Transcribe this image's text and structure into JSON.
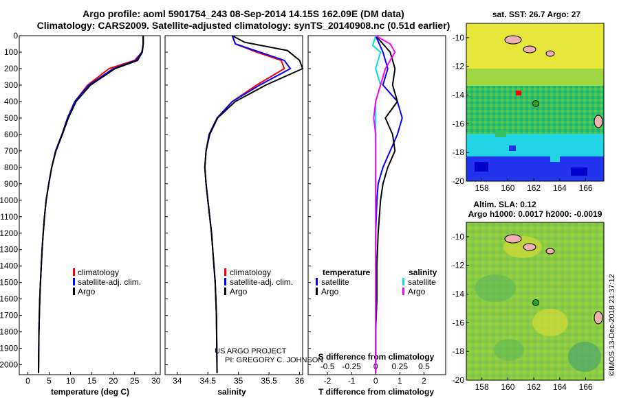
{
  "title": {
    "line1": "Argo profile: aoml 5901754_243 08-Sep-2014 14.15S 162.09E (DM data)",
    "line2": "Climatology: CARS2009. Satellite-adjusted climatology: synTS_20140908.nc (0.51d earlier)"
  },
  "colors": {
    "climatology": "#ff0000",
    "satellite": "#0000ff",
    "argo": "#000000",
    "sal_satellite": "#00e0e0",
    "sal_argo": "#ff00ff"
  },
  "depth_axis": {
    "ticks": [
      "0",
      "100",
      "200",
      "300",
      "400",
      "500",
      "600",
      "700",
      "800",
      "900",
      "1000",
      "1100",
      "1200",
      "1300",
      "1400",
      "1500",
      "1600",
      "1700",
      "1800",
      "1900",
      "2000"
    ]
  },
  "panels": {
    "temperature": {
      "xlabel": "temperature (deg C)",
      "xticks": [
        "0",
        "5",
        "10",
        "15",
        "20",
        "25",
        "30"
      ],
      "legend": [
        "climatology",
        "satellite-adj. clim.",
        "Argo"
      ]
    },
    "salinity": {
      "xlabel": "salinity",
      "xticks": [
        "34",
        "34.5",
        "35",
        "35.5",
        "36"
      ],
      "legend": [
        "climatology",
        "satellite-adj. clim.",
        "Argo"
      ],
      "credit1": "US ARGO PROJECT",
      "credit2": "PI: GREGORY C. JOHNSON"
    },
    "difference": {
      "xlabel": "T difference from climatology",
      "top_label": "S difference from climatology",
      "t_ticks": [
        "-2",
        "-1",
        "0",
        "1",
        "2"
      ],
      "s_ticks": [
        "-0.5",
        "-0.25",
        "0",
        "0.25",
        "0.5"
      ],
      "legend_temperature": {
        "header": "temperature",
        "items": [
          "satellite",
          "Argo"
        ]
      },
      "legend_salinity": {
        "header": "salinity",
        "items": [
          "satellite",
          "Argo"
        ]
      }
    }
  },
  "maps": {
    "sst": {
      "title": "sat. SST: 26.7 Argo: 27",
      "yticks": [
        "-10",
        "-12",
        "-14",
        "-16",
        "-18",
        "-20"
      ],
      "xticks": [
        "158",
        "160",
        "162",
        "164",
        "166"
      ]
    },
    "sla": {
      "title1": "Altim. SLA: 0.12",
      "title2": "Argo h1000: 0.0017 h2000: -0.0019",
      "yticks": [
        "-10",
        "-12",
        "-14",
        "-16",
        "-18",
        "-20"
      ],
      "xticks": [
        "158",
        "160",
        "162",
        "164",
        "166"
      ]
    },
    "profile_location": {
      "lat": -14.15,
      "lon": 162.09
    }
  },
  "footer": {
    "text": "©IMOS 13-Dec-2018 21:37:12"
  },
  "chart_data": [
    {
      "type": "line",
      "title": "temperature",
      "xlabel": "temperature (deg C)",
      "ylabel": "depth",
      "xlim": [
        -2,
        31
      ],
      "ylim": [
        2060,
        0
      ],
      "series": [
        {
          "name": "climatology",
          "color": "#ff0000",
          "x": [
            27.0,
            27.0,
            26.7,
            25.0,
            19.0,
            14.0,
            11.0,
            9.3,
            8.0,
            6.5,
            5.6,
            4.9,
            4.3,
            3.9,
            3.6,
            3.35,
            3.15,
            2.95,
            2.8,
            2.7,
            2.6,
            2.5
          ],
          "y": [
            0,
            50,
            100,
            150,
            200,
            300,
            400,
            500,
            600,
            700,
            800,
            900,
            1000,
            1100,
            1200,
            1300,
            1400,
            1500,
            1600,
            1700,
            1800,
            2050
          ]
        },
        {
          "name": "satellite-adj. clim.",
          "color": "#0000ff",
          "x": [
            27.0,
            27.0,
            26.7,
            25.3,
            20.0,
            14.3,
            11.0,
            9.3,
            8.0,
            6.5,
            5.6,
            4.9,
            4.3,
            3.9,
            3.6,
            3.35,
            3.15,
            2.95,
            2.8,
            2.7,
            2.6,
            2.5
          ],
          "y": [
            0,
            50,
            100,
            150,
            200,
            300,
            400,
            500,
            600,
            700,
            800,
            900,
            1000,
            1100,
            1200,
            1300,
            1400,
            1500,
            1600,
            1700,
            1800,
            2050
          ]
        },
        {
          "name": "Argo",
          "color": "#000000",
          "x": [
            27.0,
            27.0,
            26.8,
            25.7,
            20.4,
            14.7,
            11.3,
            9.5,
            8.1,
            6.6,
            5.6,
            4.9,
            4.3,
            3.9,
            3.6,
            3.35,
            3.15,
            2.95,
            2.8,
            2.7,
            2.6,
            2.5
          ],
          "y": [
            0,
            50,
            100,
            150,
            200,
            300,
            400,
            500,
            600,
            700,
            800,
            900,
            1000,
            1100,
            1200,
            1300,
            1400,
            1500,
            1600,
            1700,
            1800,
            2050
          ]
        }
      ]
    },
    {
      "type": "line",
      "title": "salinity",
      "xlabel": "salinity",
      "ylabel": "depth",
      "xlim": [
        33.8,
        36.05
      ],
      "ylim": [
        2060,
        0
      ],
      "series": [
        {
          "name": "climatology",
          "color": "#ff0000",
          "x": [
            34.9,
            34.95,
            35.3,
            35.7,
            35.75,
            35.3,
            34.9,
            34.65,
            34.52,
            34.47,
            34.45,
            34.47,
            34.5,
            34.53,
            34.56,
            34.58,
            34.6,
            34.62,
            34.63,
            34.64,
            34.65
          ],
          "y": [
            0,
            50,
            100,
            150,
            200,
            300,
            400,
            500,
            600,
            700,
            800,
            900,
            1000,
            1100,
            1200,
            1300,
            1400,
            1500,
            1600,
            1700,
            2050
          ]
        },
        {
          "name": "satellite-adj. clim.",
          "color": "#0000ff",
          "x": [
            34.9,
            34.95,
            35.35,
            35.75,
            35.85,
            35.35,
            34.9,
            34.65,
            34.52,
            34.47,
            34.45,
            34.47,
            34.5,
            34.53,
            34.56,
            34.58,
            34.6,
            34.62,
            34.63,
            34.64,
            34.65
          ],
          "y": [
            0,
            50,
            100,
            150,
            200,
            300,
            400,
            500,
            600,
            700,
            800,
            900,
            1000,
            1100,
            1200,
            1300,
            1400,
            1500,
            1600,
            1700,
            2050
          ]
        },
        {
          "name": "Argo",
          "color": "#000000",
          "x": [
            34.9,
            35.1,
            35.8,
            36.0,
            36.05,
            35.45,
            34.95,
            34.66,
            34.53,
            34.47,
            34.45,
            34.47,
            34.5,
            34.53,
            34.56,
            34.58,
            34.6,
            34.62,
            34.63,
            34.64,
            34.65
          ],
          "y": [
            0,
            40,
            90,
            150,
            200,
            300,
            400,
            500,
            600,
            700,
            800,
            900,
            1000,
            1100,
            1200,
            1300,
            1400,
            1500,
            1600,
            1700,
            2050
          ]
        }
      ]
    },
    {
      "type": "line",
      "title": "T and S difference from climatology",
      "xlabel": "T difference from climatology",
      "x2label": "S difference from climatology",
      "ylabel": "depth",
      "xlim": [
        -2.8,
        2.9
      ],
      "x2lim": [
        -0.7,
        0.725
      ],
      "ylim": [
        2060,
        0
      ],
      "series": [
        {
          "name": "temperature satellite",
          "axis": "T",
          "color": "#0000ff",
          "x": [
            0.0,
            0.3,
            0.5,
            0.3,
            0.9,
            1.1,
            0.9,
            0.6,
            0.3,
            0.1,
            0.05,
            0.0,
            0.0,
            0.0,
            0.0,
            0.0,
            0.0
          ],
          "y": [
            0,
            100,
            200,
            300,
            400,
            500,
            600,
            700,
            800,
            900,
            1000,
            1200,
            1400,
            1600,
            1800,
            2000,
            2050
          ]
        },
        {
          "name": "temperature Argo",
          "axis": "T",
          "color": "#000000",
          "x": [
            0.0,
            0.6,
            0.8,
            0.7,
            0.9,
            0.4,
            0.7,
            0.8,
            0.5,
            0.3,
            0.2,
            0.1,
            0.05,
            0.05,
            0.0,
            0.0,
            0.0
          ],
          "y": [
            0,
            100,
            200,
            300,
            400,
            500,
            600,
            700,
            800,
            900,
            1000,
            1200,
            1400,
            1600,
            1800,
            2000,
            2050
          ]
        },
        {
          "name": "salinity satellite",
          "axis": "S",
          "color": "#00e0e0",
          "x": [
            0.0,
            -0.03,
            0.05,
            0.0,
            0.05,
            0.0,
            0.0,
            0.0,
            0.0,
            0.0,
            0.0,
            0.0,
            0.0,
            0.0,
            0.0,
            0.0
          ],
          "y": [
            0,
            60,
            100,
            200,
            300,
            400,
            500,
            600,
            700,
            800,
            1000,
            1200,
            1400,
            1600,
            1800,
            2050
          ]
        },
        {
          "name": "salinity Argo",
          "axis": "S",
          "color": "#ff00ff",
          "x": [
            0.0,
            0.15,
            0.2,
            0.1,
            0.05,
            0.0,
            -0.02,
            0.0,
            0.0,
            0.0,
            0.0,
            0.0,
            0.0
          ],
          "y": [
            0,
            50,
            100,
            200,
            300,
            400,
            500,
            600,
            800,
            1000,
            1400,
            1800,
            2050
          ]
        }
      ]
    }
  ]
}
